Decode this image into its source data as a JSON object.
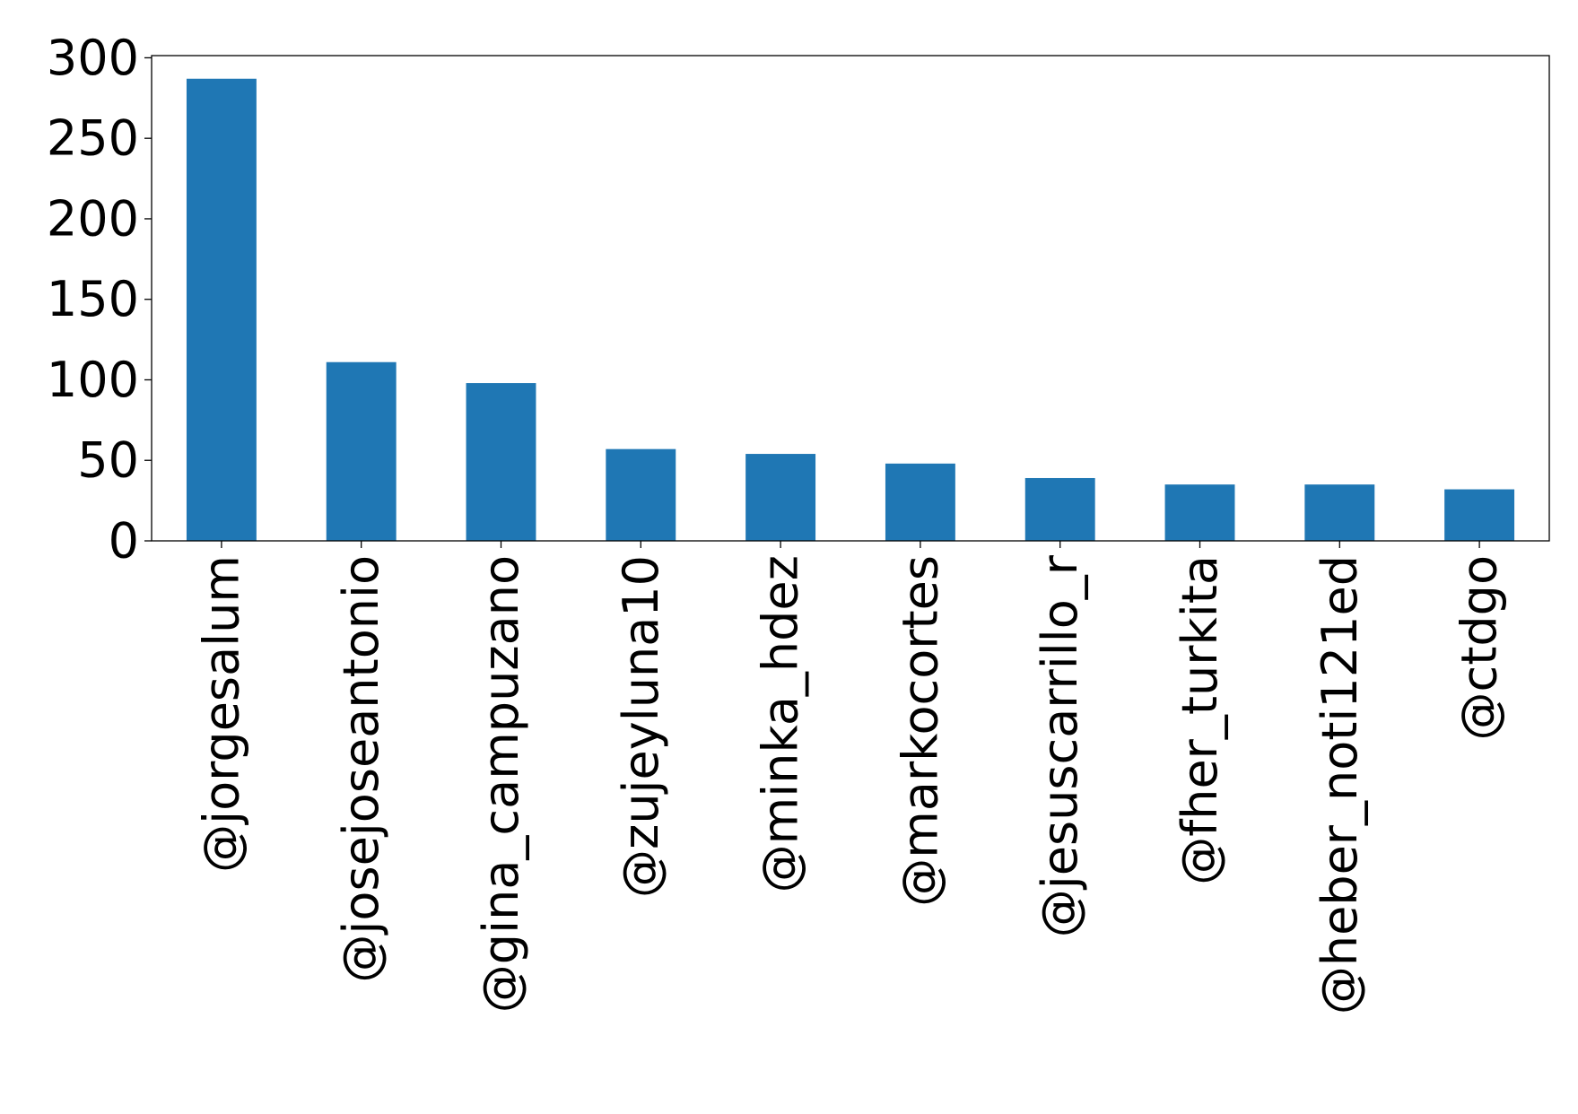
{
  "chart_data": {
    "type": "bar",
    "title": "",
    "xlabel": "",
    "ylabel": "",
    "categories": [
      "@jorgesalum",
      "@josejoseantonio",
      "@gina_campuzano",
      "@zujeyluna10",
      "@minka_hdez",
      "@markocortes",
      "@jesuscarrillo_r",
      "@fher_turkita",
      "@heber_noti121ed",
      "@ctdgo"
    ],
    "values": [
      287,
      111,
      98,
      57,
      54,
      48,
      39,
      35,
      35,
      32
    ],
    "ylim": [
      0,
      301.35
    ],
    "yticks": [
      0,
      50,
      100,
      150,
      200,
      250,
      300
    ],
    "grid": false,
    "legend": "none",
    "bar_color": "#1f77b4"
  }
}
